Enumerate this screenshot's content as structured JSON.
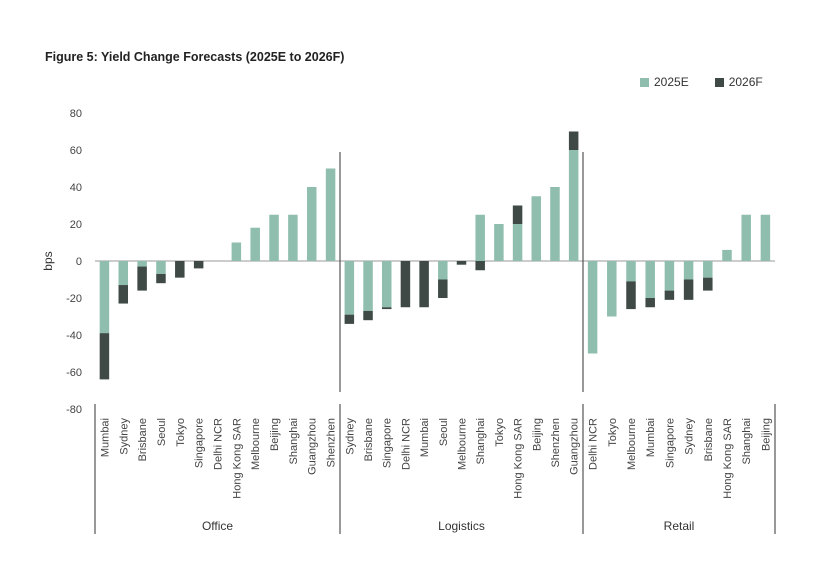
{
  "chart_data": {
    "type": "bar",
    "stacked": true,
    "title": "Figure 5: Yield Change Forecasts (2025E to 2026F)",
    "ylabel": "bps",
    "ylim": [
      -80,
      80
    ],
    "yticks": [
      80,
      60,
      40,
      20,
      0,
      -20,
      -40,
      -60,
      -80
    ],
    "colors": {
      "2025E": "#8fbeaf",
      "2026F": "#3f4a47"
    },
    "legend": [
      {
        "name": "2025E",
        "color": "#8fbeaf"
      },
      {
        "name": "2026F",
        "color": "#3f4a47"
      }
    ],
    "groups": [
      {
        "name": "Office",
        "categories": [
          "Mumbai",
          "Sydney",
          "Brisbane",
          "Seoul",
          "Tokyo",
          "Singapore",
          "Delhi NCR",
          "Hong Kong SAR",
          "Melbourne",
          "Beijing",
          "Shanghai",
          "Guangzhou",
          "Shenzhen"
        ],
        "series": [
          {
            "name": "2025E",
            "values": [
              -39,
              -13,
              -3,
              -7,
              0,
              0,
              0,
              10,
              18,
              25,
              25,
              40,
              50
            ]
          },
          {
            "name": "2026F",
            "values": [
              -25,
              -10,
              -13,
              -5,
              -9,
              -4,
              0,
              0,
              0,
              0,
              0,
              0,
              0
            ]
          }
        ]
      },
      {
        "name": "Logistics",
        "categories": [
          "Sydney",
          "Brisbane",
          "Singapore",
          "Delhi NCR",
          "Mumbai",
          "Seoul",
          "Melbourne",
          "Shanghai",
          "Tokyo",
          "Hong Kong SAR",
          "Beijing",
          "Shenzhen",
          "Guangzhou"
        ],
        "series": [
          {
            "name": "2025E",
            "values": [
              -29,
              -27,
              -25,
              0,
              0,
              -10,
              0,
              25,
              20,
              20,
              35,
              40,
              60
            ]
          },
          {
            "name": "2026F",
            "values": [
              -5,
              -5,
              -1,
              -25,
              -25,
              -10,
              -2,
              -5,
              0,
              10,
              0,
              0,
              10
            ]
          }
        ]
      },
      {
        "name": "Retail",
        "categories": [
          "Delhi NCR",
          "Tokyo",
          "Melbourne",
          "Mumbai",
          "Singapore",
          "Sydney",
          "Brisbane",
          "Hong Kong SAR",
          "Shanghai",
          "Beijing"
        ],
        "series": [
          {
            "name": "2025E",
            "values": [
              -50,
              -30,
              -11,
              -20,
              -16,
              -10,
              -9,
              6,
              25,
              25
            ]
          },
          {
            "name": "2026F",
            "values": [
              0,
              0,
              -15,
              -5,
              -5,
              -11,
              -7,
              0,
              0,
              0
            ]
          }
        ]
      }
    ]
  }
}
